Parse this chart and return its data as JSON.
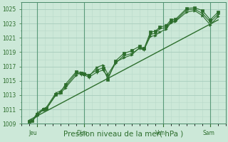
{
  "background_color": "#cce8d8",
  "grid_color_major": "#a8ccbc",
  "grid_color_minor": "#b8d8c8",
  "line_color": "#2d6e2d",
  "xlabel": "Pression niveau de la mer( hPa )",
  "ylim": [
    1009,
    1026
  ],
  "yticks": [
    1009,
    1011,
    1013,
    1015,
    1017,
    1019,
    1021,
    1023,
    1025
  ],
  "xtick_labels": [
    "Jeu",
    "Dim",
    "Ven",
    "Sam"
  ],
  "xtick_positions": [
    0.5,
    3.5,
    8.5,
    11.5
  ],
  "vline_positions": [
    1.0,
    4.0,
    9.0,
    12.0
  ],
  "series1_x": [
    0.5,
    0.7,
    1.0,
    1.4,
    1.6,
    2.2,
    2.5,
    2.8,
    3.5,
    3.8,
    4.0,
    4.3,
    4.8,
    5.2,
    5.5,
    6.0,
    6.5,
    7.0,
    7.5,
    7.8,
    8.2,
    8.5,
    8.8,
    9.2,
    9.5,
    9.8,
    10.5,
    11.0,
    11.5,
    12.0,
    12.5
  ],
  "series1_y": [
    1009.3,
    1009.4,
    1010.5,
    1011.1,
    1011.3,
    1013.3,
    1013.6,
    1014.2,
    1016.1,
    1015.9,
    1015.8,
    1015.5,
    1016.2,
    1016.5,
    1015.5,
    1017.5,
    1018.5,
    1018.8,
    1019.5,
    1019.3,
    1021.5,
    1021.6,
    1022.3,
    1022.4,
    1023.3,
    1023.4,
    1024.9,
    1025.0,
    1024.4,
    1023.2,
    1024.3
  ],
  "series2_x": [
    0.5,
    0.7,
    1.0,
    1.4,
    1.6,
    2.2,
    2.5,
    2.8,
    3.5,
    3.8,
    4.0,
    4.3,
    4.8,
    5.2,
    5.5,
    6.0,
    6.5,
    7.0,
    7.5,
    7.8,
    8.2,
    8.5,
    8.8,
    9.2,
    9.5,
    9.8,
    10.5,
    11.0,
    11.5,
    12.0,
    12.5
  ],
  "series2_y": [
    1009.3,
    1009.4,
    1010.3,
    1011.0,
    1011.1,
    1013.1,
    1013.4,
    1014.5,
    1016.3,
    1016.1,
    1016.0,
    1015.8,
    1016.5,
    1016.8,
    1015.2,
    1017.8,
    1018.8,
    1019.2,
    1019.8,
    1019.5,
    1021.8,
    1021.9,
    1022.5,
    1022.7,
    1023.5,
    1023.6,
    1025.1,
    1025.2,
    1024.8,
    1023.5,
    1024.6
  ],
  "series3_x": [
    0.5,
    0.7,
    1.0,
    1.4,
    1.6,
    2.2,
    2.5,
    2.8,
    3.5,
    3.8,
    4.0,
    4.3,
    4.8,
    5.2,
    5.5,
    6.0,
    6.5,
    7.0,
    7.5,
    7.8,
    8.2,
    8.5,
    8.8,
    9.2,
    9.5,
    9.8,
    10.5,
    11.0,
    11.5,
    12.0,
    12.5
  ],
  "series3_y": [
    1009.3,
    1009.4,
    1010.1,
    1011.0,
    1011.1,
    1013.0,
    1013.3,
    1014.0,
    1015.8,
    1016.2,
    1016.1,
    1015.6,
    1016.9,
    1017.2,
    1015.9,
    1017.6,
    1018.2,
    1018.6,
    1019.6,
    1019.4,
    1021.2,
    1021.3,
    1021.8,
    1022.2,
    1023.1,
    1023.3,
    1024.6,
    1024.8,
    1024.1,
    1022.8,
    1024.0
  ],
  "trend_x": [
    0.5,
    12.5
  ],
  "trend_y": [
    1009.5,
    1023.5
  ],
  "xlim": [
    0,
    13
  ],
  "xlabel_fontsize": 7.5,
  "tick_fontsize": 5.5
}
